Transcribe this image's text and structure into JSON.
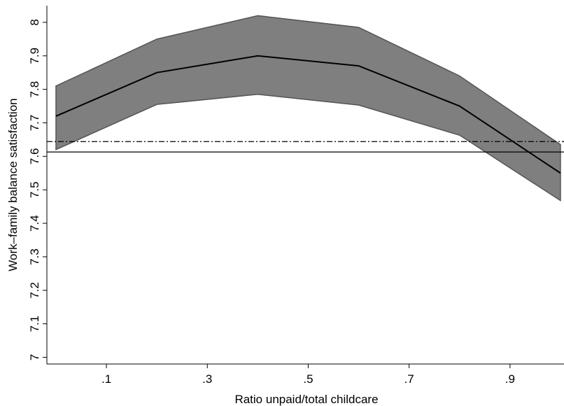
{
  "chart_data": {
    "type": "line-band",
    "x_label": "Ratio unpaid/total childcare",
    "y_label": "Work–family balance satisfaction",
    "x": [
      0,
      0.2,
      0.4,
      0.6,
      0.8,
      1.0
    ],
    "estimate": {
      "color": "#000000",
      "values": [
        7.72,
        7.85,
        7.9,
        7.87,
        7.75,
        7.55
      ]
    },
    "ci_upper": [
      7.81,
      7.95,
      8.02,
      7.985,
      7.84,
      7.635
    ],
    "ci_lower": [
      7.62,
      7.755,
      7.785,
      7.753,
      7.663,
      7.468
    ],
    "band_color": "#7f7f7f",
    "hlines": [
      {
        "value": 7.613,
        "style": "solid"
      },
      {
        "value": 7.644,
        "style": "dashdot"
      }
    ],
    "xlim": [
      -0.018,
      1.007
    ],
    "ylim": [
      6.98,
      8.05
    ],
    "xticks": [
      {
        "value": 0.1,
        "label": ".1"
      },
      {
        "value": 0.3,
        "label": ".3"
      },
      {
        "value": 0.5,
        "label": ".5"
      },
      {
        "value": 0.7,
        "label": ".7"
      },
      {
        "value": 0.9,
        "label": ".9"
      }
    ],
    "yticks": [
      7,
      7.1,
      7.2,
      7.3,
      7.4,
      7.5,
      7.6,
      7.7,
      7.8,
      7.9,
      8
    ]
  }
}
